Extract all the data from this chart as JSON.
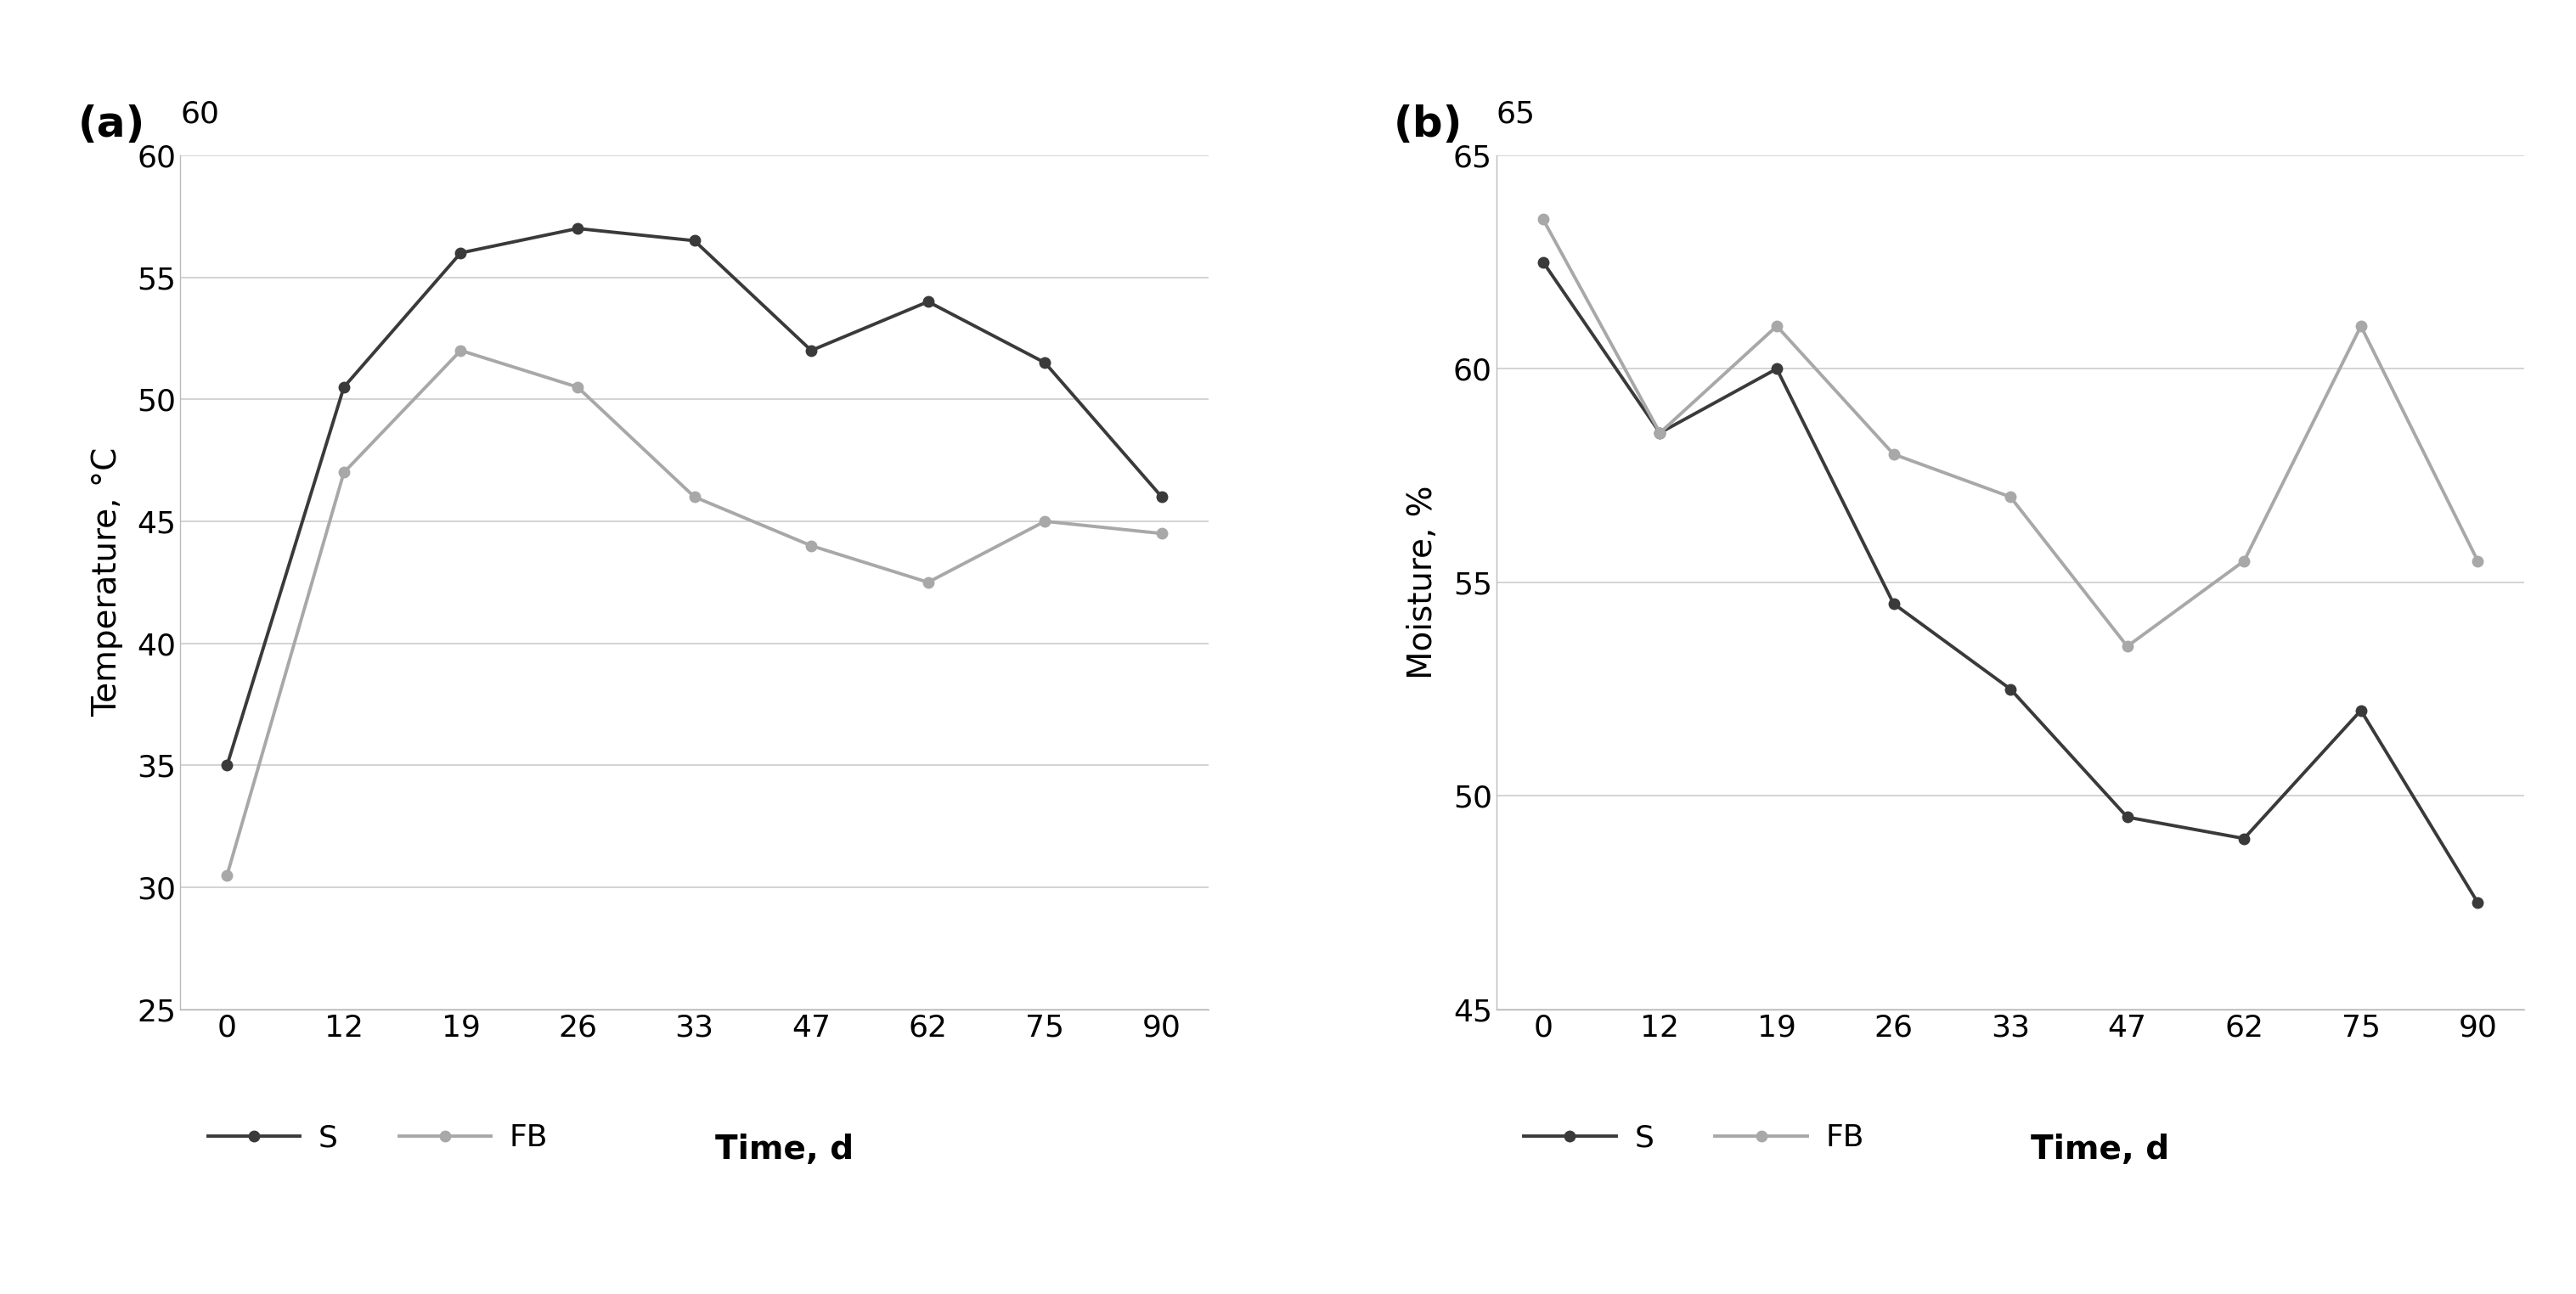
{
  "time_points": [
    0,
    12,
    19,
    26,
    33,
    47,
    62,
    75,
    90
  ],
  "time_labels": [
    "0",
    "12",
    "19",
    "26",
    "33",
    "47",
    "62",
    "75",
    "90"
  ],
  "temp_S": [
    35,
    50.5,
    56,
    57,
    56.5,
    52,
    54,
    51.5,
    46
  ],
  "temp_FB": [
    30.5,
    47,
    52,
    50.5,
    46,
    44,
    42.5,
    45,
    44.5
  ],
  "moist_S": [
    62.5,
    58.5,
    60,
    54.5,
    52.5,
    49.5,
    49,
    52,
    47.5
  ],
  "moist_FB": [
    63.5,
    58.5,
    61,
    58,
    57,
    53.5,
    55.5,
    61,
    55.5
  ],
  "temp_ylim": [
    25,
    60
  ],
  "temp_yticks": [
    25,
    30,
    35,
    40,
    45,
    50,
    55,
    60
  ],
  "moist_ylim": [
    45,
    65
  ],
  "moist_yticks": [
    45,
    50,
    55,
    60,
    65
  ],
  "color_S": "#3a3a3a",
  "color_FB": "#a8a8a8",
  "panel_a_label": "(a)",
  "panel_b_label": "(b)",
  "ylabel_a": "Temperature, °C",
  "ylabel_b": "Moisture, %",
  "xlabel": "Time, d",
  "legend_S": "S",
  "legend_FB": "FB",
  "bg_color": "#ffffff",
  "grid_color": "#cccccc",
  "title_a_ymax": "60",
  "title_b_ymax": "65"
}
